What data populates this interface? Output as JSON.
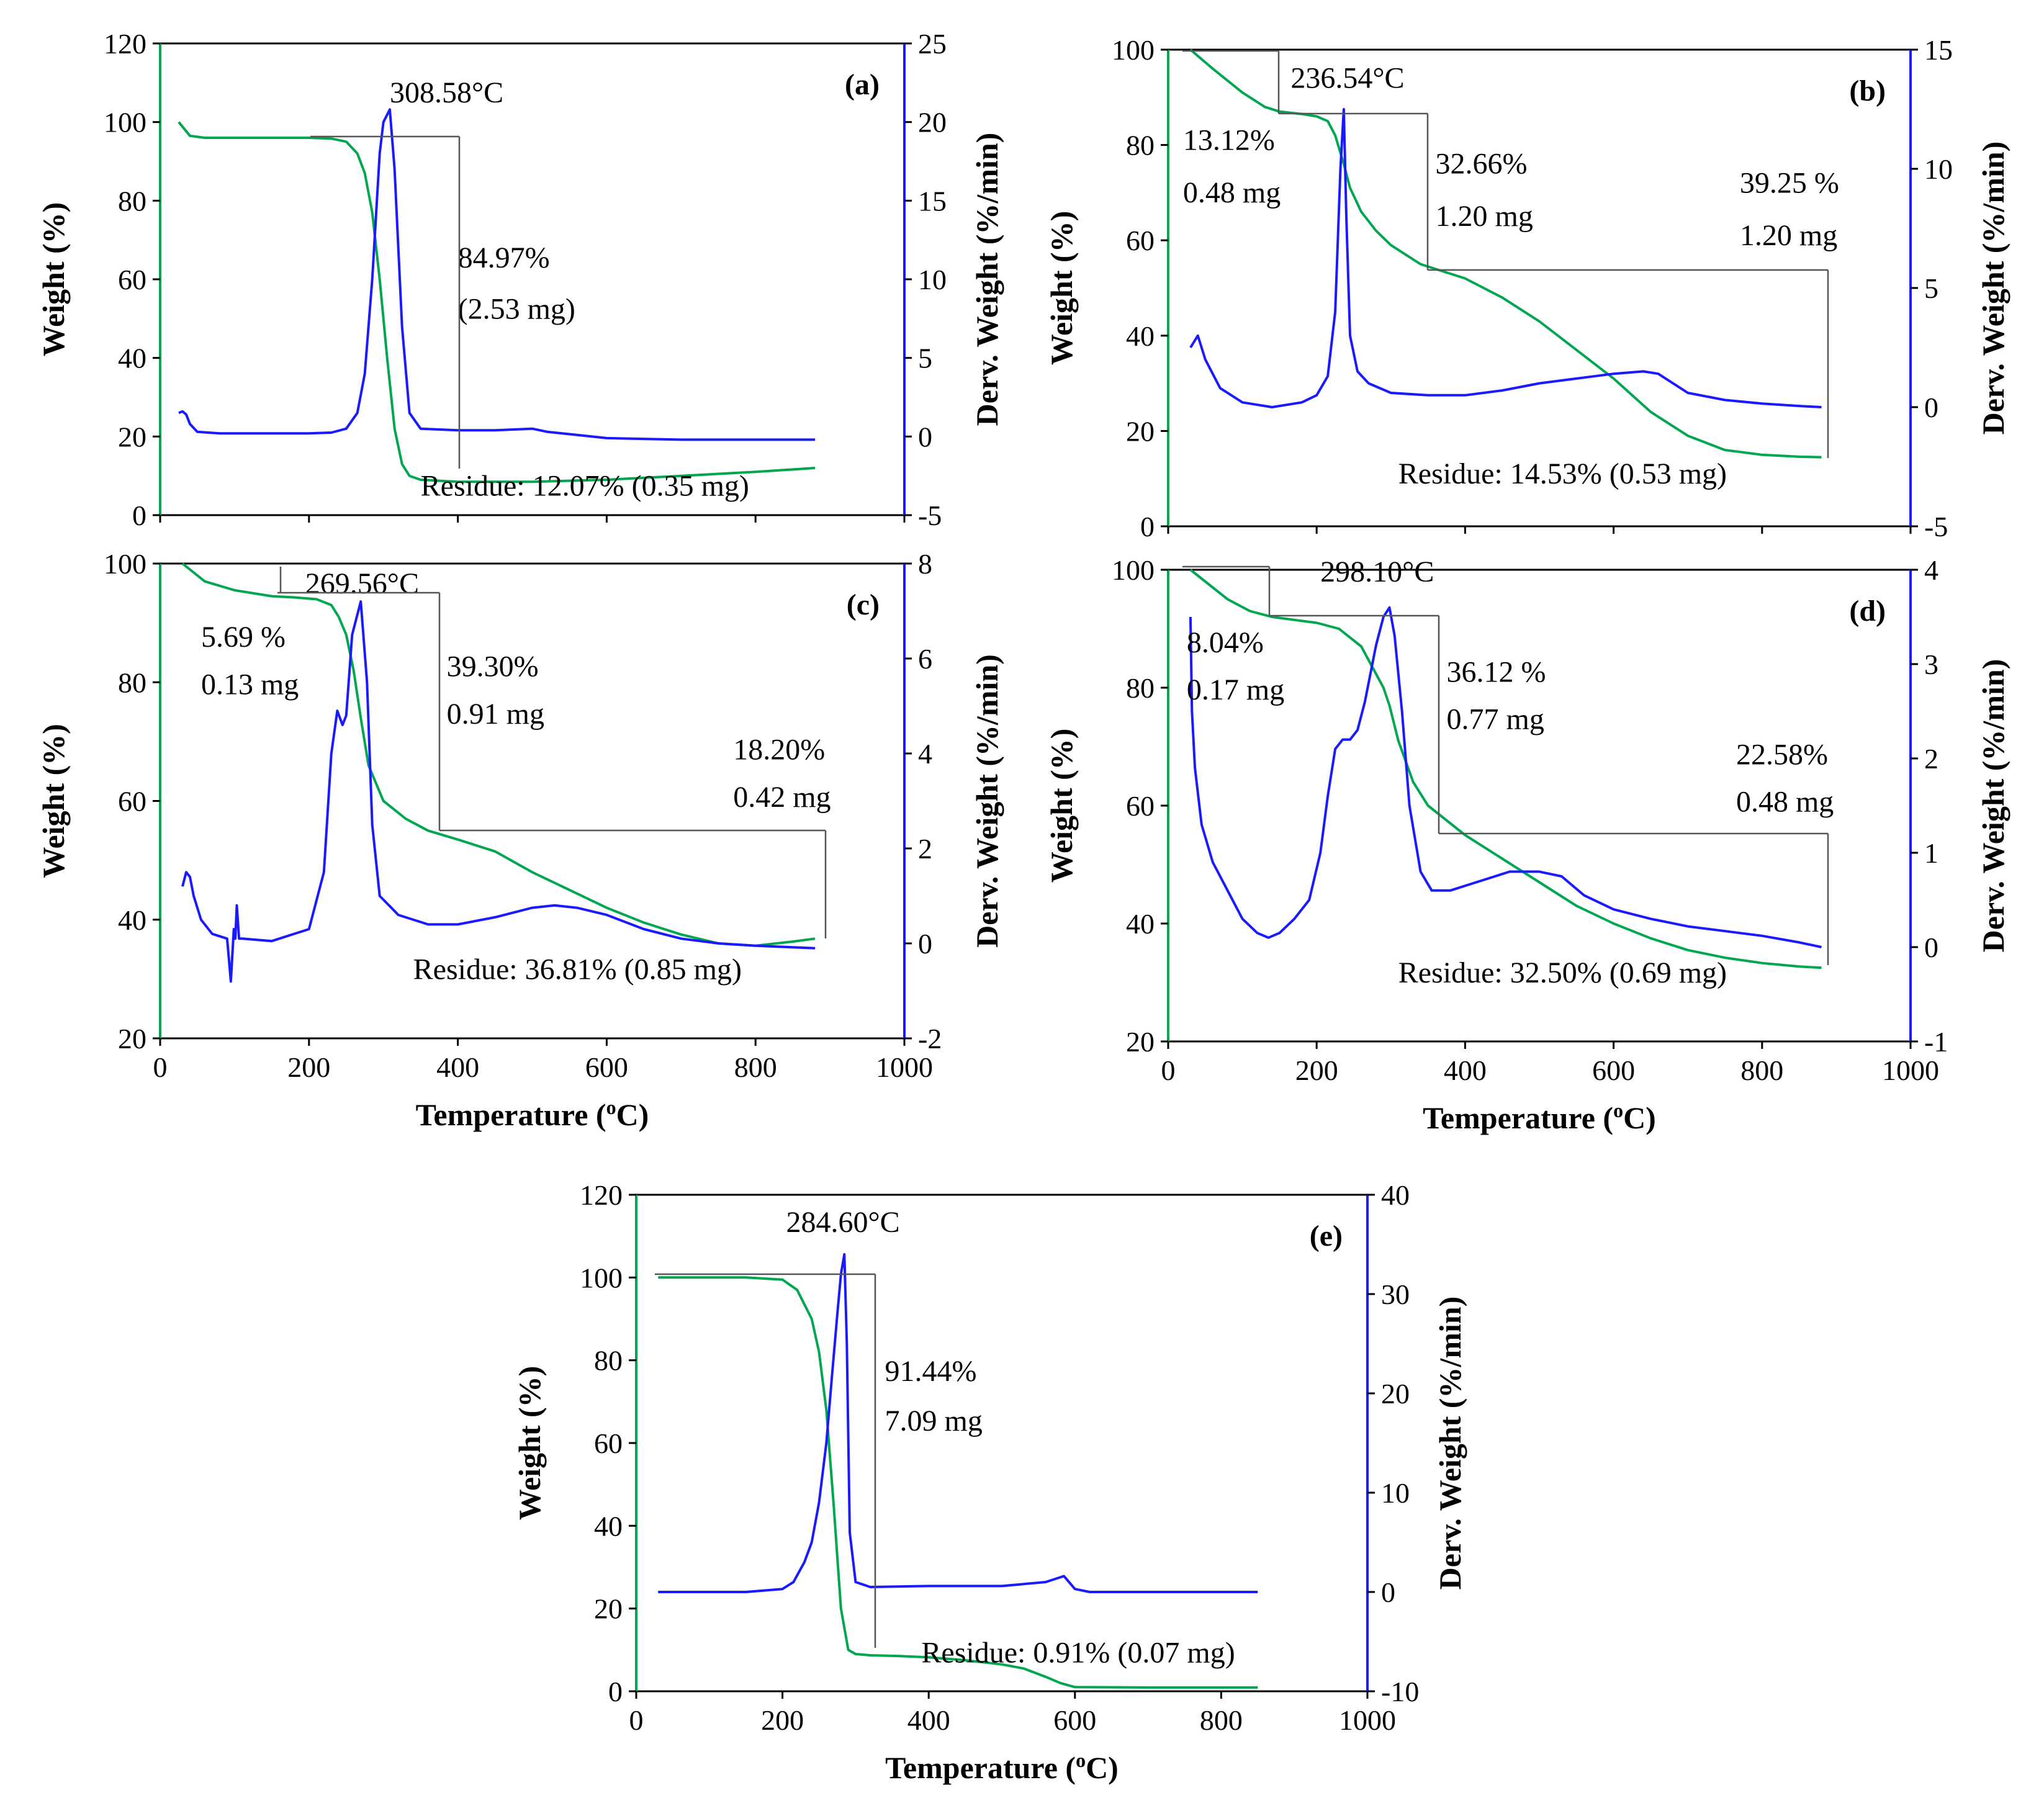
{
  "colors": {
    "weight": "#00a650",
    "deriv": "#1a1aff",
    "annotation": "#555555"
  },
  "chart_data": [
    {
      "type": "line",
      "panel": "(a)",
      "xlabel": "",
      "ylabel": "Weight (%)",
      "y2label": "Derv. Weight (%/min)",
      "xlim": [
        0,
        1000
      ],
      "ylim": [
        0,
        120
      ],
      "y2lim": [
        -5,
        25
      ],
      "xticks": [],
      "yticks": [
        0,
        20,
        40,
        60,
        80,
        100,
        120
      ],
      "y2ticks": [
        -5,
        0,
        5,
        10,
        15,
        20,
        25
      ],
      "series": [
        {
          "name": "Weight",
          "axis": "y",
          "x": [
            25,
            40,
            60,
            100,
            150,
            200,
            230,
            250,
            265,
            275,
            285,
            295,
            305,
            315,
            325,
            335,
            350,
            400,
            500,
            600,
            700,
            800,
            880
          ],
          "values": [
            100,
            96.5,
            96,
            96,
            96,
            96,
            95.8,
            95,
            92,
            87,
            77,
            60,
            40,
            22,
            13,
            10,
            9,
            8.5,
            8.5,
            9,
            10,
            11,
            12
          ]
        },
        {
          "name": "Derivative",
          "axis": "y2",
          "x": [
            25,
            30,
            35,
            40,
            50,
            80,
            150,
            200,
            230,
            250,
            265,
            275,
            285,
            295,
            300,
            308.58,
            315,
            325,
            335,
            350,
            400,
            450,
            500,
            520,
            560,
            600,
            700,
            800,
            880
          ],
          "values": [
            1.5,
            1.6,
            1.4,
            0.8,
            0.3,
            0.2,
            0.2,
            0.2,
            0.25,
            0.5,
            1.5,
            4,
            10,
            18,
            20,
            20.8,
            17,
            7,
            1.5,
            0.5,
            0.4,
            0.4,
            0.5,
            0.3,
            0.1,
            -0.1,
            -0.2,
            -0.2,
            -0.2
          ]
        }
      ],
      "annotations": [
        {
          "text": "308.58°C",
          "x": 308.58,
          "y": 105
        },
        {
          "text": "84.97%",
          "x": 400,
          "y": 63
        },
        {
          "text": "(2.53 mg)",
          "x": 400,
          "y": 50
        },
        {
          "text": "Residue: 12.07% (0.35 mg)",
          "x": 350,
          "y": 5
        }
      ]
    },
    {
      "type": "line",
      "panel": "(b)",
      "xlabel": "",
      "ylabel": "Weight (%)",
      "y2label": "Derv. Weight (%/min)",
      "xlim": [
        0,
        1000
      ],
      "ylim": [
        0,
        100
      ],
      "y2lim": [
        -5,
        15
      ],
      "xticks": [],
      "yticks": [
        0,
        20,
        40,
        60,
        80,
        100
      ],
      "y2ticks": [
        -5,
        0,
        5,
        10,
        15
      ],
      "series": [
        {
          "name": "Weight",
          "axis": "y",
          "x": [
            30,
            60,
            100,
            130,
            150,
            180,
            200,
            215,
            225,
            236.54,
            245,
            260,
            280,
            300,
            340,
            400,
            450,
            500,
            550,
            600,
            650,
            700,
            750,
            800,
            850,
            880
          ],
          "values": [
            100,
            96,
            91,
            88,
            87,
            86.5,
            86,
            85,
            82,
            76,
            71,
            66,
            62,
            59,
            55,
            52,
            48,
            43,
            37,
            31,
            24,
            19,
            16,
            15,
            14.6,
            14.5
          ]
        },
        {
          "name": "Derivative",
          "axis": "y2",
          "x": [
            30,
            40,
            50,
            70,
            100,
            140,
            180,
            200,
            215,
            225,
            232,
            236.54,
            240,
            245,
            255,
            270,
            300,
            350,
            400,
            450,
            500,
            550,
            600,
            640,
            660,
            680,
            700,
            750,
            800,
            850,
            880
          ],
          "values": [
            2.5,
            3.0,
            2.0,
            0.8,
            0.2,
            0.0,
            0.2,
            0.5,
            1.3,
            4.0,
            10,
            12.5,
            8,
            3,
            1.5,
            1.0,
            0.6,
            0.5,
            0.5,
            0.7,
            1.0,
            1.2,
            1.4,
            1.5,
            1.4,
            1.0,
            0.6,
            0.3,
            0.15,
            0.05,
            0.0
          ]
        }
      ],
      "annotations": [
        {
          "text": "236.54°C",
          "x": 165,
          "y": 92
        },
        {
          "text": "13.12%",
          "x": 20,
          "y": 79
        },
        {
          "text": "0.48 mg",
          "x": 20,
          "y": 68
        },
        {
          "text": "32.66%",
          "x": 360,
          "y": 74
        },
        {
          "text": "1.20 mg",
          "x": 360,
          "y": 63
        },
        {
          "text": "39.25 %",
          "x": 770,
          "y": 70
        },
        {
          "text": "1.20 mg",
          "x": 770,
          "y": 59
        },
        {
          "text": "Residue: 14.53% (0.53 mg)",
          "x": 310,
          "y": 9
        }
      ]
    },
    {
      "type": "line",
      "panel": "(c)",
      "xlabel": "Temperature (oC)",
      "ylabel": "Weight (%)",
      "y2label": "Derv. Weight (%/min)",
      "xlim": [
        0,
        1000
      ],
      "ylim": [
        20,
        100
      ],
      "y2lim": [
        -2,
        8
      ],
      "xticks": [
        0,
        200,
        400,
        600,
        800,
        1000
      ],
      "yticks": [
        20,
        40,
        60,
        80,
        100
      ],
      "y2ticks": [
        -2,
        0,
        2,
        4,
        6,
        8
      ],
      "series": [
        {
          "name": "Weight",
          "axis": "y",
          "x": [
            30,
            60,
            100,
            150,
            180,
            210,
            230,
            240,
            250,
            260,
            269.56,
            280,
            300,
            330,
            360,
            400,
            450,
            500,
            550,
            600,
            650,
            700,
            750,
            800,
            850,
            880
          ],
          "values": [
            100,
            97,
            95.5,
            94.5,
            94.3,
            94,
            93,
            91,
            88,
            82,
            74,
            66,
            60,
            57,
            55,
            53.5,
            51.5,
            48,
            45,
            42,
            39.5,
            37.5,
            36,
            35.6,
            36.3,
            36.81
          ]
        },
        {
          "name": "Derivative",
          "axis": "y2",
          "x": [
            30,
            35,
            40,
            45,
            55,
            70,
            90,
            95,
            99,
            101,
            103,
            106,
            110,
            150,
            200,
            220,
            230,
            238,
            245,
            250,
            258,
            269.56,
            278,
            285,
            295,
            320,
            360,
            400,
            450,
            500,
            530,
            560,
            600,
            650,
            700,
            750,
            800,
            880
          ],
          "values": [
            1.2,
            1.5,
            1.4,
            1.0,
            0.5,
            0.2,
            0.1,
            -0.8,
            0.3,
            0.1,
            0.8,
            0.1,
            0.1,
            0.05,
            0.3,
            1.5,
            4,
            4.9,
            4.6,
            4.8,
            6.5,
            7.2,
            5.5,
            2.5,
            1.0,
            0.6,
            0.4,
            0.4,
            0.55,
            0.75,
            0.8,
            0.75,
            0.6,
            0.3,
            0.1,
            0.0,
            -0.05,
            -0.1
          ]
        }
      ],
      "annotations": [
        {
          "text": "269.56°C",
          "x": 195,
          "y": 95
        },
        {
          "text": "5.69 %",
          "x": 55,
          "y": 86
        },
        {
          "text": "0.13 mg",
          "x": 55,
          "y": 78
        },
        {
          "text": "39.30%",
          "x": 385,
          "y": 81
        },
        {
          "text": "0.91 mg",
          "x": 385,
          "y": 73
        },
        {
          "text": "18.20%",
          "x": 770,
          "y": 67
        },
        {
          "text": "0.42 mg",
          "x": 770,
          "y": 59
        },
        {
          "text": "Residue: 36.81% (0.85 mg)",
          "x": 340,
          "y": 30
        }
      ]
    },
    {
      "type": "line",
      "panel": "(d)",
      "xlabel": "Temperature (oC)",
      "ylabel": "Weight (%)",
      "y2label": "Derv. Weight (%/min)",
      "xlim": [
        0,
        1000
      ],
      "ylim": [
        20,
        100
      ],
      "y2lim": [
        -1,
        4
      ],
      "xticks": [
        0,
        200,
        400,
        600,
        800,
        1000
      ],
      "yticks": [
        20,
        40,
        60,
        80,
        100
      ],
      "y2ticks": [
        -1,
        0,
        1,
        2,
        3,
        4
      ],
      "series": [
        {
          "name": "Weight",
          "axis": "y",
          "x": [
            30,
            50,
            80,
            110,
            140,
            170,
            200,
            230,
            260,
            290,
            298.1,
            310,
            330,
            350,
            400,
            450,
            500,
            550,
            600,
            650,
            700,
            750,
            800,
            850,
            880
          ],
          "values": [
            100,
            98,
            95,
            93,
            92,
            91.5,
            91,
            90,
            87,
            80,
            77,
            71,
            64,
            60,
            55,
            51,
            47,
            43,
            40,
            37.5,
            35.5,
            34.2,
            33.3,
            32.7,
            32.5
          ]
        },
        {
          "name": "Derivative",
          "axis": "y2",
          "x": [
            30,
            32,
            36,
            45,
            60,
            80,
            100,
            120,
            135,
            150,
            170,
            190,
            205,
            215,
            225,
            235,
            245,
            255,
            265,
            280,
            290,
            298.1,
            305,
            315,
            325,
            340,
            355,
            380,
            420,
            460,
            500,
            530,
            560,
            600,
            650,
            700,
            750,
            800,
            850,
            880
          ],
          "values": [
            3.5,
            2.5,
            1.9,
            1.3,
            0.9,
            0.6,
            0.3,
            0.15,
            0.1,
            0.15,
            0.3,
            0.5,
            1.0,
            1.6,
            2.1,
            2.2,
            2.2,
            2.3,
            2.6,
            3.2,
            3.5,
            3.6,
            3.3,
            2.5,
            1.5,
            0.8,
            0.6,
            0.6,
            0.7,
            0.8,
            0.8,
            0.75,
            0.55,
            0.4,
            0.3,
            0.22,
            0.17,
            0.12,
            0.05,
            0.0
          ]
        }
      ],
      "annotations": [
        {
          "text": "298.10°C",
          "x": 205,
          "y": 98
        },
        {
          "text": "8.04%",
          "x": 25,
          "y": 86
        },
        {
          "text": "0.17 mg",
          "x": 25,
          "y": 78
        },
        {
          "text": "36.12 %",
          "x": 375,
          "y": 81
        },
        {
          "text": "0.77 mg",
          "x": 375,
          "y": 73
        },
        {
          "text": "22.58%",
          "x": 765,
          "y": 67
        },
        {
          "text": "0.48 mg",
          "x": 765,
          "y": 59
        },
        {
          "text": "Residue: 32.50% (0.69 mg)",
          "x": 310,
          "y": 30
        }
      ]
    },
    {
      "type": "line",
      "panel": "(e)",
      "xlabel": "Temperature (oC)",
      "ylabel": "Weight (%)",
      "y2label": "Derv. Weight (%/min)",
      "xlim": [
        0,
        1000
      ],
      "ylim": [
        0,
        120
      ],
      "y2lim": [
        -10,
        40
      ],
      "xticks": [
        0,
        200,
        400,
        600,
        800,
        1000
      ],
      "yticks": [
        0,
        20,
        40,
        60,
        80,
        100,
        120
      ],
      "y2ticks": [
        -10,
        0,
        10,
        20,
        30,
        40
      ],
      "series": [
        {
          "name": "Weight",
          "axis": "y",
          "x": [
            30,
            100,
            150,
            200,
            220,
            240,
            250,
            260,
            270,
            280,
            290,
            300,
            320,
            360,
            400,
            450,
            500,
            530,
            560,
            580,
            600,
            700,
            850
          ],
          "values": [
            100,
            100,
            100,
            99.5,
            97,
            90,
            82,
            68,
            45,
            20,
            10,
            9,
            8.7,
            8.5,
            8.2,
            7.5,
            6.5,
            5.5,
            3.5,
            2,
            1,
            0.91,
            0.91
          ]
        },
        {
          "name": "Derivative",
          "axis": "y2",
          "x": [
            30,
            150,
            200,
            215,
            230,
            240,
            250,
            260,
            268,
            275,
            280,
            284.6,
            288,
            292,
            300,
            320,
            400,
            500,
            560,
            585,
            600,
            620,
            700,
            850
          ],
          "values": [
            0,
            0,
            0.3,
            1.0,
            3,
            5,
            9,
            15,
            22,
            28,
            32,
            34,
            25,
            6,
            1.0,
            0.5,
            0.6,
            0.6,
            1.0,
            1.6,
            0.3,
            0,
            0,
            0
          ]
        }
      ],
      "annotations": [
        {
          "text": "284.60°C",
          "x": 205,
          "y": 111
        },
        {
          "text": "91.44%",
          "x": 340,
          "y": 75
        },
        {
          "text": "7.09 mg",
          "x": 340,
          "y": 63
        },
        {
          "text": "Residue: 0.91% (0.07 mg)",
          "x": 390,
          "y": 7
        }
      ]
    }
  ]
}
